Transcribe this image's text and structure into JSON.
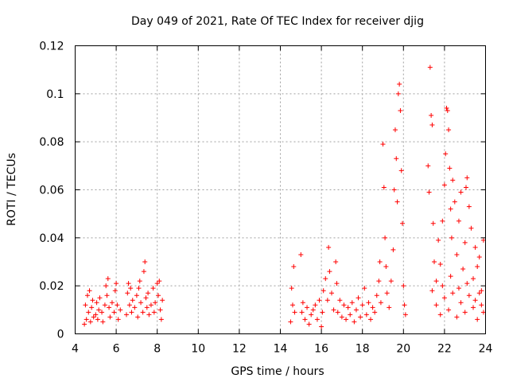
{
  "chart_data": {
    "type": "scatter",
    "title": "Day 049 of 2021, Rate Of TEC Index for receiver djig",
    "xlabel": "GPS time / hours",
    "ylabel": "ROTI / TECUs",
    "xlim": [
      4,
      24
    ],
    "ylim": [
      0,
      0.12
    ],
    "x_ticks": [
      4,
      6,
      8,
      10,
      12,
      14,
      16,
      18,
      20,
      22,
      24
    ],
    "x_tick_labels": [
      "4",
      "6",
      "8",
      "10",
      "12",
      "14",
      "16",
      "18",
      "20",
      "22",
      "24"
    ],
    "y_ticks": [
      0,
      0.02,
      0.04,
      0.06,
      0.08,
      0.1,
      0.12
    ],
    "y_tick_labels": [
      "0",
      "0.02",
      "0.04",
      "0.06",
      "0.08",
      "0.1",
      "0.12"
    ],
    "grid": true,
    "marker": "+",
    "color": "#ff0000",
    "series": [
      {
        "name": "ROTI",
        "points": [
          [
            4.45,
            0.004
          ],
          [
            4.5,
            0.012
          ],
          [
            4.55,
            0.006
          ],
          [
            4.6,
            0.016
          ],
          [
            4.65,
            0.009
          ],
          [
            4.7,
            0.018
          ],
          [
            4.75,
            0.005
          ],
          [
            4.8,
            0.011
          ],
          [
            4.85,
            0.014
          ],
          [
            4.9,
            0.007
          ],
          [
            5.0,
            0.008
          ],
          [
            5.05,
            0.013
          ],
          [
            5.1,
            0.006
          ],
          [
            5.15,
            0.01
          ],
          [
            5.2,
            0.015
          ],
          [
            5.3,
            0.009
          ],
          [
            5.35,
            0.005
          ],
          [
            5.45,
            0.012
          ],
          [
            5.5,
            0.02
          ],
          [
            5.55,
            0.016
          ],
          [
            5.6,
            0.023
          ],
          [
            5.65,
            0.011
          ],
          [
            5.7,
            0.007
          ],
          [
            5.8,
            0.013
          ],
          [
            5.9,
            0.009
          ],
          [
            5.95,
            0.018
          ],
          [
            6.0,
            0.021
          ],
          [
            6.05,
            0.012
          ],
          [
            6.1,
            0.006
          ],
          [
            6.2,
            0.01
          ],
          [
            6.5,
            0.008
          ],
          [
            6.55,
            0.017
          ],
          [
            6.6,
            0.021
          ],
          [
            6.65,
            0.012
          ],
          [
            6.7,
            0.019
          ],
          [
            6.75,
            0.009
          ],
          [
            6.8,
            0.014
          ],
          [
            6.9,
            0.011
          ],
          [
            7.0,
            0.016
          ],
          [
            7.05,
            0.007
          ],
          [
            7.1,
            0.019
          ],
          [
            7.15,
            0.022
          ],
          [
            7.2,
            0.013
          ],
          [
            7.3,
            0.009
          ],
          [
            7.35,
            0.026
          ],
          [
            7.4,
            0.03
          ],
          [
            7.45,
            0.015
          ],
          [
            7.5,
            0.011
          ],
          [
            7.55,
            0.017
          ],
          [
            7.6,
            0.008
          ],
          [
            7.7,
            0.012
          ],
          [
            7.8,
            0.019
          ],
          [
            7.85,
            0.009
          ],
          [
            7.9,
            0.013
          ],
          [
            8.0,
            0.021
          ],
          [
            8.05,
            0.016
          ],
          [
            8.1,
            0.022
          ],
          [
            8.15,
            0.01
          ],
          [
            8.2,
            0.006
          ],
          [
            8.25,
            0.014
          ],
          [
            14.5,
            0.005
          ],
          [
            14.55,
            0.019
          ],
          [
            14.6,
            0.012
          ],
          [
            14.65,
            0.028
          ],
          [
            14.7,
            0.009
          ],
          [
            15.0,
            0.033
          ],
          [
            15.05,
            0.009
          ],
          [
            15.1,
            0.013
          ],
          [
            15.2,
            0.006
          ],
          [
            15.3,
            0.011
          ],
          [
            15.4,
            0.004
          ],
          [
            15.5,
            0.008
          ],
          [
            15.6,
            0.01
          ],
          [
            15.7,
            0.012
          ],
          [
            15.8,
            0.006
          ],
          [
            15.9,
            0.014
          ],
          [
            16.0,
            0.003
          ],
          [
            16.05,
            0.009
          ],
          [
            16.1,
            0.018
          ],
          [
            16.2,
            0.023
          ],
          [
            16.3,
            0.014
          ],
          [
            16.35,
            0.036
          ],
          [
            16.4,
            0.026
          ],
          [
            16.5,
            0.017
          ],
          [
            16.6,
            0.01
          ],
          [
            16.7,
            0.03
          ],
          [
            16.75,
            0.021
          ],
          [
            16.8,
            0.009
          ],
          [
            16.9,
            0.014
          ],
          [
            17.0,
            0.007
          ],
          [
            17.1,
            0.012
          ],
          [
            17.2,
            0.006
          ],
          [
            17.3,
            0.011
          ],
          [
            17.4,
            0.008
          ],
          [
            17.5,
            0.013
          ],
          [
            17.6,
            0.005
          ],
          [
            17.7,
            0.01
          ],
          [
            17.8,
            0.015
          ],
          [
            17.9,
            0.007
          ],
          [
            18.0,
            0.012
          ],
          [
            18.1,
            0.019
          ],
          [
            18.2,
            0.008
          ],
          [
            18.3,
            0.013
          ],
          [
            18.4,
            0.006
          ],
          [
            18.5,
            0.011
          ],
          [
            18.6,
            0.009
          ],
          [
            18.7,
            0.016
          ],
          [
            18.8,
            0.022
          ],
          [
            18.85,
            0.03
          ],
          [
            18.9,
            0.013
          ],
          [
            19.0,
            0.079
          ],
          [
            19.05,
            0.061
          ],
          [
            19.1,
            0.04
          ],
          [
            19.15,
            0.028
          ],
          [
            19.2,
            0.017
          ],
          [
            19.3,
            0.011
          ],
          [
            19.4,
            0.022
          ],
          [
            19.5,
            0.035
          ],
          [
            19.55,
            0.06
          ],
          [
            19.6,
            0.085
          ],
          [
            19.65,
            0.073
          ],
          [
            19.7,
            0.055
          ],
          [
            19.75,
            0.1
          ],
          [
            19.8,
            0.104
          ],
          [
            19.85,
            0.093
          ],
          [
            19.9,
            0.068
          ],
          [
            19.95,
            0.046
          ],
          [
            20.0,
            0.02
          ],
          [
            20.05,
            0.012
          ],
          [
            20.1,
            0.008
          ],
          [
            21.2,
            0.07
          ],
          [
            21.25,
            0.059
          ],
          [
            21.3,
            0.111
          ],
          [
            21.35,
            0.091
          ],
          [
            21.4,
            0.087
          ],
          [
            21.45,
            0.046
          ],
          [
            21.5,
            0.03
          ],
          [
            21.6,
            0.022
          ],
          [
            21.7,
            0.039
          ],
          [
            21.8,
            0.029
          ],
          [
            21.9,
            0.047
          ],
          [
            22.0,
            0.062
          ],
          [
            22.05,
            0.075
          ],
          [
            22.1,
            0.094
          ],
          [
            22.15,
            0.093
          ],
          [
            22.2,
            0.085
          ],
          [
            22.25,
            0.069
          ],
          [
            22.3,
            0.052
          ],
          [
            22.35,
            0.04
          ],
          [
            22.4,
            0.064
          ],
          [
            22.5,
            0.055
          ],
          [
            22.6,
            0.033
          ],
          [
            22.7,
            0.047
          ],
          [
            22.8,
            0.059
          ],
          [
            22.9,
            0.027
          ],
          [
            23.0,
            0.038
          ],
          [
            23.05,
            0.061
          ],
          [
            23.1,
            0.065
          ],
          [
            23.2,
            0.053
          ],
          [
            23.3,
            0.044
          ],
          [
            23.4,
            0.023
          ],
          [
            23.5,
            0.036
          ],
          [
            23.6,
            0.028
          ],
          [
            23.7,
            0.032
          ],
          [
            23.8,
            0.018
          ],
          [
            23.9,
            0.039
          ],
          [
            21.6,
            0.012
          ],
          [
            21.8,
            0.008
          ],
          [
            22.0,
            0.015
          ],
          [
            22.2,
            0.01
          ],
          [
            22.4,
            0.017
          ],
          [
            22.6,
            0.007
          ],
          [
            22.8,
            0.013
          ],
          [
            23.0,
            0.009
          ],
          [
            23.2,
            0.016
          ],
          [
            23.4,
            0.011
          ],
          [
            23.6,
            0.006
          ],
          [
            23.8,
            0.012
          ],
          [
            21.4,
            0.018
          ],
          [
            21.9,
            0.02
          ],
          [
            22.3,
            0.024
          ],
          [
            22.7,
            0.019
          ],
          [
            23.1,
            0.021
          ],
          [
            23.5,
            0.014
          ],
          [
            23.7,
            0.017
          ],
          [
            23.9,
            0.009
          ]
        ]
      }
    ]
  }
}
